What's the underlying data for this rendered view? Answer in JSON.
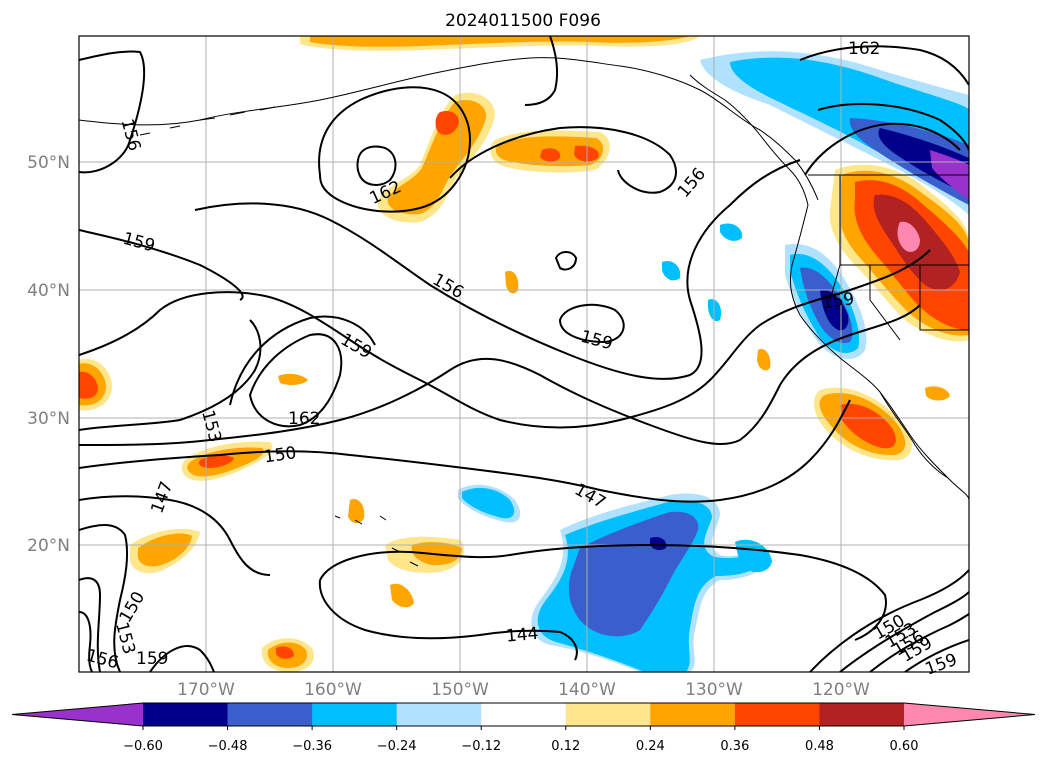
{
  "title": "2024011500 F096",
  "lat_labels": [
    "50°N",
    "40°N",
    "30°N",
    "20°N"
  ],
  "lon_labels": [
    "170°W",
    "160°W",
    "150°W",
    "140°W",
    "130°W",
    "120°W"
  ],
  "colorbar": {
    "ticks": [
      "−0.60",
      "−0.48",
      "−0.36",
      "−0.24",
      "−0.12",
      "0.12",
      "0.24",
      "0.36",
      "0.48",
      "0.60"
    ],
    "colors": [
      "#9932cc",
      "#00008b",
      "#3a5fcd",
      "#00bfff",
      "#b0e2ff",
      "#ffffff",
      "#ffe68a",
      "#ffa500",
      "#ff4500",
      "#b22222",
      "#ff88b0"
    ]
  },
  "contour_labels": [
    {
      "text": "162"
    },
    {
      "text": "156"
    },
    {
      "text": "162"
    },
    {
      "text": "156"
    },
    {
      "text": "159"
    },
    {
      "text": "156"
    },
    {
      "text": "159"
    },
    {
      "text": "159"
    },
    {
      "text": "159"
    },
    {
      "text": "162"
    },
    {
      "text": "153"
    },
    {
      "text": "150"
    },
    {
      "text": "147"
    },
    {
      "text": "147"
    },
    {
      "text": "144"
    },
    {
      "text": "150"
    },
    {
      "text": "153"
    },
    {
      "text": "156"
    },
    {
      "text": "159"
    },
    {
      "text": "150"
    },
    {
      "text": "153"
    },
    {
      "text": "156"
    },
    {
      "text": "159"
    },
    {
      "text": "159"
    }
  ]
}
